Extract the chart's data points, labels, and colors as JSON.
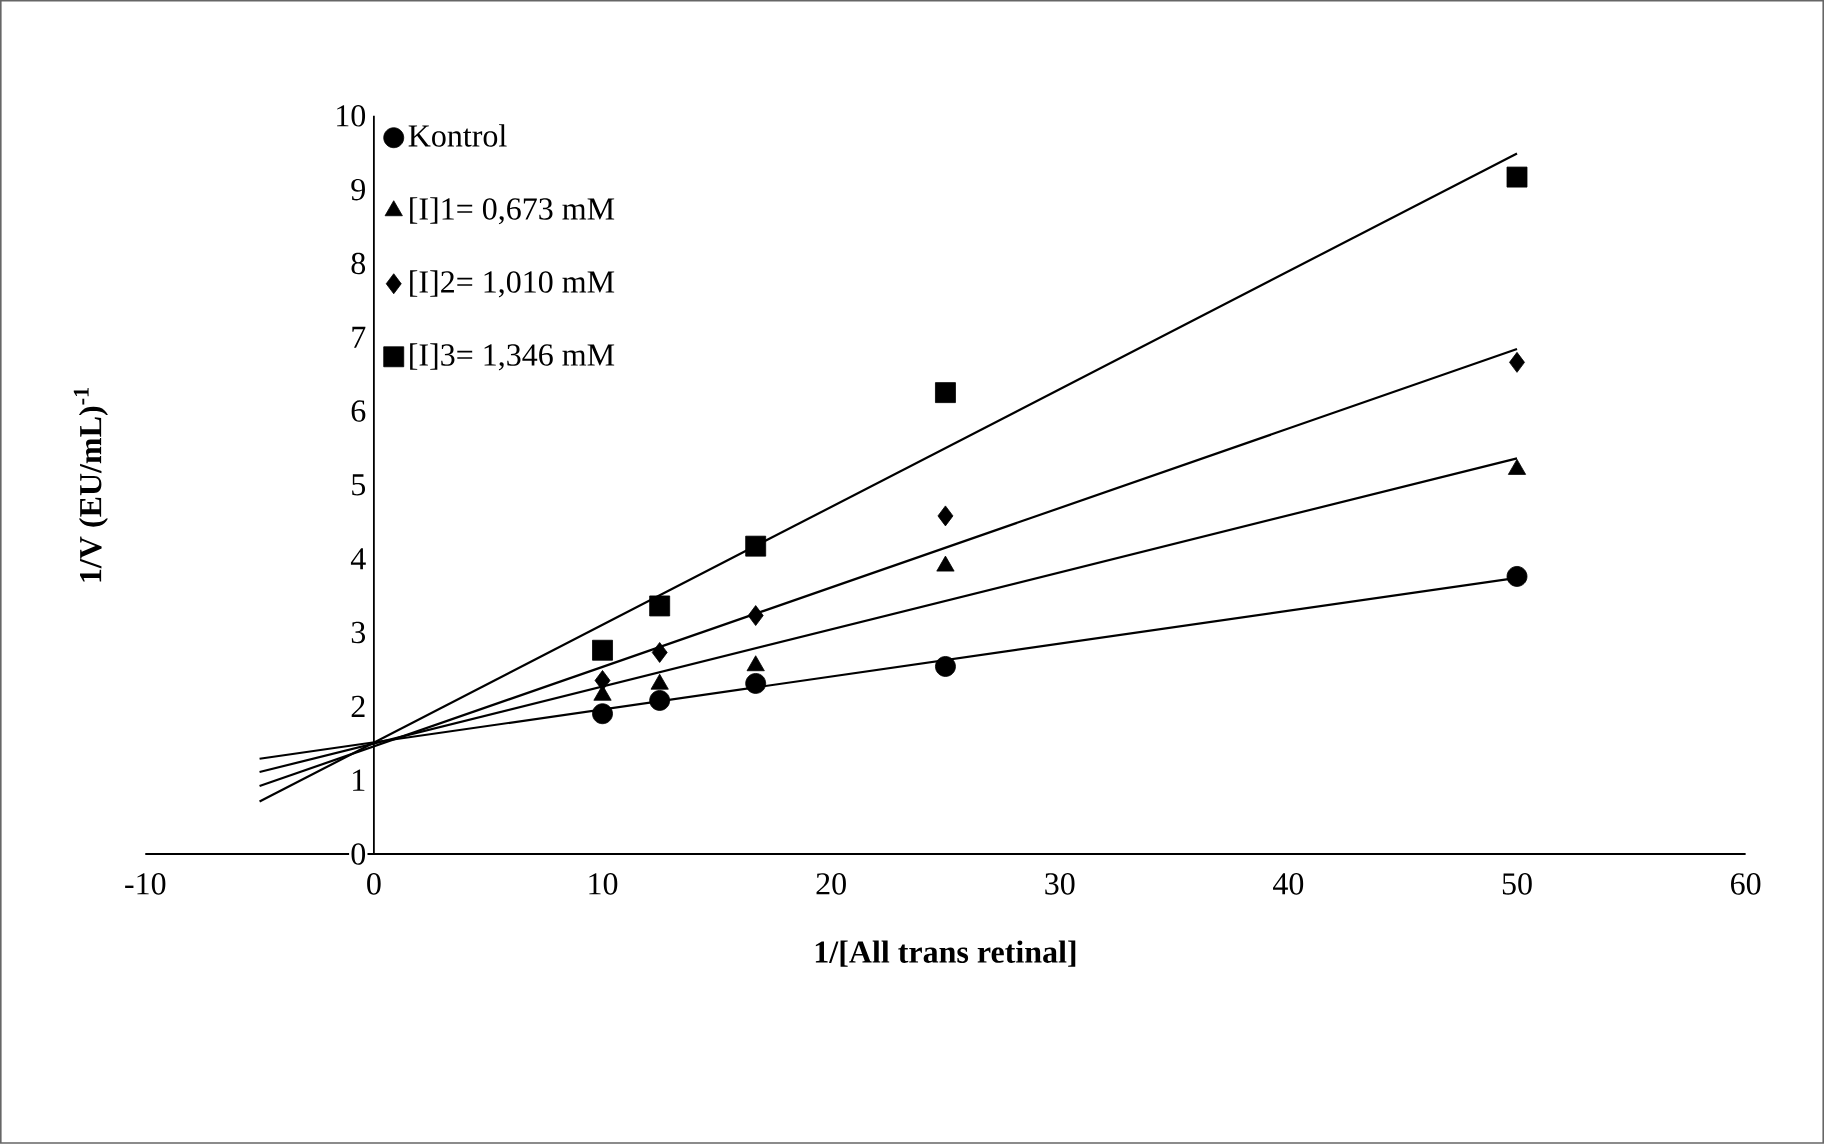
{
  "chart_data": {
    "type": "scatter",
    "xlabel": "1/[All trans retinal]",
    "ylabel": "1/V (EU/mL)$^{-1}$",
    "xlim": [
      -10,
      60
    ],
    "ylim": [
      0,
      10
    ],
    "xticks": [
      -10,
      0,
      10,
      20,
      30,
      40,
      50,
      60
    ],
    "yticks": [
      0,
      1,
      2,
      3,
      4,
      5,
      6,
      7,
      8,
      9,
      10
    ],
    "grid": false,
    "legend": "top left",
    "series": [
      {
        "name": "Kontrol",
        "type": "scatter",
        "marker": "circle",
        "color": "#000000",
        "x": [
          10,
          12.5,
          16.7,
          25,
          50
        ],
        "values": [
          1.9,
          2.08,
          2.31,
          2.54,
          3.76
        ]
      },
      {
        "name": "[I]1= 0,673 mM",
        "type": "scatter",
        "marker": "triangle",
        "color": "#000000",
        "x": [
          10,
          12.5,
          16.7,
          25,
          50
        ],
        "values": [
          2.15,
          2.3,
          2.55,
          3.9,
          5.21
        ]
      },
      {
        "name": "[I]2= 1,010 mM",
        "type": "scatter",
        "marker": "diamond",
        "color": "#000000",
        "x": [
          10,
          12.5,
          16.7,
          25,
          50
        ],
        "values": [
          2.35,
          2.73,
          3.23,
          4.58,
          6.66
        ]
      },
      {
        "name": "[I]3= 1,346 mM",
        "type": "scatter",
        "marker": "square",
        "color": "#000000",
        "x": [
          10,
          12.5,
          16.7,
          25,
          50
        ],
        "values": [
          2.76,
          3.36,
          4.17,
          6.25,
          9.17
        ]
      },
      {
        "type": "line",
        "color": "#000000",
        "x": [
          -5,
          50
        ],
        "values": [
          1.29,
          3.74
        ]
      },
      {
        "type": "line",
        "color": "#000000",
        "x": [
          -5,
          50
        ],
        "values": [
          1.11,
          5.36
        ]
      },
      {
        "type": "line",
        "color": "#000000",
        "x": [
          -5,
          50
        ],
        "values": [
          0.92,
          6.84
        ]
      },
      {
        "type": "line",
        "color": "#000000",
        "x": [
          -5,
          50
        ],
        "values": [
          0.71,
          9.49
        ]
      }
    ]
  }
}
